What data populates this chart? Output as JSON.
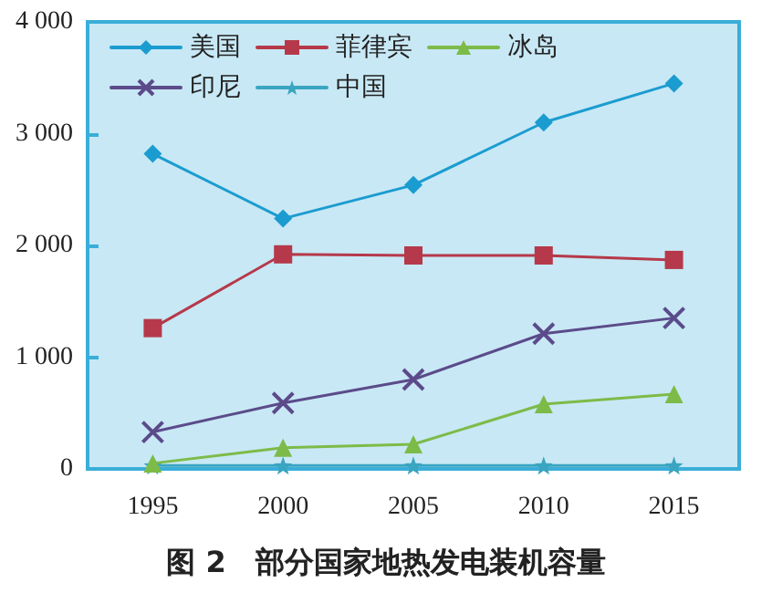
{
  "chart_data": {
    "type": "line",
    "title": "图 2　部分国家地热发电装机容量",
    "categories": [
      "1995",
      "2000",
      "2005",
      "2010",
      "2015"
    ],
    "series": [
      {
        "name": "美国",
        "color": "#1b9cd0",
        "marker": "diamond",
        "values": [
          2820,
          2240,
          2540,
          3100,
          3450
        ]
      },
      {
        "name": "菲律宾",
        "color": "#b5394a",
        "marker": "square",
        "values": [
          1260,
          1920,
          1910,
          1910,
          1870
        ]
      },
      {
        "name": "冰岛",
        "color": "#7dbb48",
        "marker": "triangle",
        "values": [
          50,
          190,
          220,
          580,
          670
        ]
      },
      {
        "name": "印尼",
        "color": "#5b4b8a",
        "marker": "cross",
        "values": [
          330,
          590,
          800,
          1210,
          1350
        ]
      },
      {
        "name": "中国",
        "color": "#3aa5c0",
        "marker": "star",
        "values": [
          30,
          30,
          30,
          30,
          30
        ]
      }
    ],
    "ylim": [
      0,
      4000
    ],
    "yticks": [
      0,
      {
        "value": 1000,
        "label": "1 000"
      },
      {
        "value": 2000,
        "label": "2 000"
      },
      {
        "value": 3000,
        "label": "3 000"
      },
      {
        "value": 4000,
        "label": "4 000"
      }
    ],
    "grid": false,
    "legend": "top left"
  }
}
